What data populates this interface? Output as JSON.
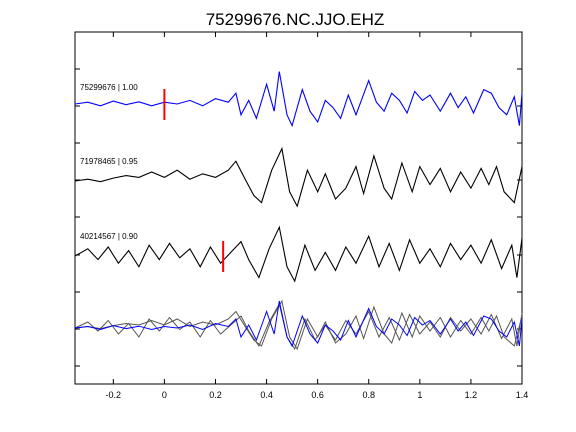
{
  "chart_data": {
    "type": "line",
    "title": "75299676.NC.JJO.EHZ",
    "xlim": [
      -0.35,
      1.4
    ],
    "x_ticks": [
      -0.2,
      0,
      0.2,
      0.4,
      0.6,
      0.8,
      1,
      1.2,
      1.4
    ],
    "x_tick_labels": [
      "-0.2",
      "0",
      "0.2",
      "0.4",
      "0.6",
      "0.8",
      "1",
      "1.2",
      "1.4"
    ],
    "ylabel": "",
    "xlabel": "",
    "grid": false,
    "traces": [
      {
        "label": "75299676 | 1.00",
        "color": "#0000ff",
        "pick_time": 0.0,
        "pick_color": "#ff0000",
        "points": [
          [
            -0.35,
            0.0
          ],
          [
            -0.3,
            0.05
          ],
          [
            -0.25,
            -0.05
          ],
          [
            -0.2,
            0.08
          ],
          [
            -0.15,
            -0.02
          ],
          [
            -0.1,
            0.06
          ],
          [
            -0.05,
            -0.05
          ],
          [
            0.0,
            0.05
          ],
          [
            0.05,
            0.0
          ],
          [
            0.1,
            0.1
          ],
          [
            0.15,
            -0.05
          ],
          [
            0.2,
            0.15
          ],
          [
            0.25,
            0.05
          ],
          [
            0.28,
            0.3
          ],
          [
            0.3,
            -0.3
          ],
          [
            0.33,
            0.1
          ],
          [
            0.36,
            -0.4
          ],
          [
            0.4,
            0.55
          ],
          [
            0.43,
            -0.2
          ],
          [
            0.45,
            0.9
          ],
          [
            0.48,
            -0.3
          ],
          [
            0.5,
            -0.6
          ],
          [
            0.54,
            0.4
          ],
          [
            0.57,
            -0.2
          ],
          [
            0.6,
            -0.5
          ],
          [
            0.63,
            0.1
          ],
          [
            0.66,
            -0.1
          ],
          [
            0.69,
            -0.4
          ],
          [
            0.72,
            0.25
          ],
          [
            0.75,
            -0.3
          ],
          [
            0.8,
            0.65
          ],
          [
            0.83,
            0.05
          ],
          [
            0.86,
            -0.2
          ],
          [
            0.89,
            0.3
          ],
          [
            0.92,
            0.1
          ],
          [
            0.95,
            -0.25
          ],
          [
            0.98,
            0.35
          ],
          [
            1.01,
            0.1
          ],
          [
            1.04,
            0.25
          ],
          [
            1.08,
            -0.2
          ],
          [
            1.12,
            0.3
          ],
          [
            1.15,
            -0.1
          ],
          [
            1.18,
            0.2
          ],
          [
            1.21,
            -0.25
          ],
          [
            1.25,
            0.4
          ],
          [
            1.28,
            0.3
          ],
          [
            1.31,
            -0.1
          ],
          [
            1.34,
            -0.3
          ],
          [
            1.37,
            0.2
          ],
          [
            1.39,
            -0.6
          ],
          [
            1.4,
            0.3
          ]
        ]
      },
      {
        "label": "71978465 | 0.95",
        "color": "#000000",
        "pick_time": null,
        "points": [
          [
            -0.35,
            0.0
          ],
          [
            -0.3,
            0.05
          ],
          [
            -0.25,
            -0.02
          ],
          [
            -0.2,
            0.08
          ],
          [
            -0.15,
            0.15
          ],
          [
            -0.1,
            0.1
          ],
          [
            -0.05,
            0.25
          ],
          [
            0.0,
            0.1
          ],
          [
            0.05,
            0.3
          ],
          [
            0.1,
            0.05
          ],
          [
            0.15,
            0.2
          ],
          [
            0.2,
            0.1
          ],
          [
            0.25,
            0.3
          ],
          [
            0.28,
            0.55
          ],
          [
            0.32,
            0.0
          ],
          [
            0.35,
            -0.4
          ],
          [
            0.38,
            -0.6
          ],
          [
            0.42,
            0.3
          ],
          [
            0.46,
            0.9
          ],
          [
            0.49,
            -0.3
          ],
          [
            0.52,
            -0.7
          ],
          [
            0.56,
            0.3
          ],
          [
            0.6,
            -0.3
          ],
          [
            0.63,
            0.2
          ],
          [
            0.67,
            -0.5
          ],
          [
            0.71,
            -0.2
          ],
          [
            0.75,
            0.4
          ],
          [
            0.78,
            -0.35
          ],
          [
            0.82,
            0.7
          ],
          [
            0.86,
            -0.2
          ],
          [
            0.89,
            -0.5
          ],
          [
            0.93,
            0.5
          ],
          [
            0.97,
            -0.3
          ],
          [
            1.0,
            0.4
          ],
          [
            1.04,
            -0.1
          ],
          [
            1.08,
            0.35
          ],
          [
            1.12,
            -0.3
          ],
          [
            1.16,
            0.25
          ],
          [
            1.2,
            -0.2
          ],
          [
            1.24,
            0.35
          ],
          [
            1.27,
            -0.1
          ],
          [
            1.3,
            0.4
          ],
          [
            1.33,
            -0.3
          ],
          [
            1.37,
            -0.6
          ],
          [
            1.4,
            0.4
          ]
        ]
      },
      {
        "label": "40214567 | 0.90",
        "color": "#000000",
        "pick_time": 0.23,
        "pick_color": "#ff0000",
        "points": [
          [
            -0.35,
            0.0
          ],
          [
            -0.3,
            0.2
          ],
          [
            -0.26,
            -0.1
          ],
          [
            -0.22,
            0.25
          ],
          [
            -0.18,
            -0.2
          ],
          [
            -0.14,
            0.15
          ],
          [
            -0.1,
            -0.3
          ],
          [
            -0.06,
            0.3
          ],
          [
            -0.02,
            -0.1
          ],
          [
            0.02,
            0.35
          ],
          [
            0.06,
            -0.05
          ],
          [
            0.1,
            0.2
          ],
          [
            0.14,
            -0.3
          ],
          [
            0.18,
            0.25
          ],
          [
            0.22,
            -0.2
          ],
          [
            0.26,
            0.1
          ],
          [
            0.3,
            0.4
          ],
          [
            0.33,
            -0.1
          ],
          [
            0.37,
            -0.6
          ],
          [
            0.41,
            0.2
          ],
          [
            0.45,
            0.8
          ],
          [
            0.48,
            -0.3
          ],
          [
            0.51,
            -0.7
          ],
          [
            0.55,
            0.3
          ],
          [
            0.59,
            -0.4
          ],
          [
            0.63,
            0.1
          ],
          [
            0.67,
            -0.4
          ],
          [
            0.71,
            0.25
          ],
          [
            0.75,
            -0.2
          ],
          [
            0.8,
            0.55
          ],
          [
            0.84,
            -0.3
          ],
          [
            0.88,
            0.35
          ],
          [
            0.92,
            -0.4
          ],
          [
            0.96,
            0.45
          ],
          [
            1.0,
            -0.2
          ],
          [
            1.04,
            0.2
          ],
          [
            1.08,
            -0.3
          ],
          [
            1.12,
            0.35
          ],
          [
            1.16,
            -0.1
          ],
          [
            1.2,
            0.3
          ],
          [
            1.24,
            -0.2
          ],
          [
            1.28,
            0.45
          ],
          [
            1.32,
            -0.35
          ],
          [
            1.36,
            0.3
          ],
          [
            1.38,
            -0.6
          ],
          [
            1.4,
            0.5
          ]
        ]
      }
    ]
  }
}
